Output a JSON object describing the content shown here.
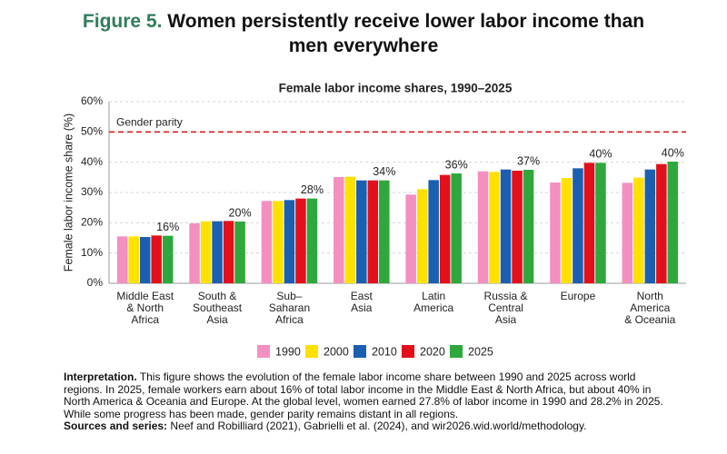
{
  "figure": {
    "label": "Figure 5.",
    "title": "Women persistently receive lower labor income than men everywhere"
  },
  "chart_data": {
    "type": "bar",
    "title": "Female labor income shares, 1990–2025",
    "y_label": "Female labor income share (%)",
    "categories": [
      "Middle East\n& North\nAfrica",
      "South &\nSoutheast\nAsia",
      "Sub–\nSaharan\nAfrica",
      "East\nAsia",
      "Latin\nAmerica",
      "Russia &\nCentral\nAsia",
      "Europe",
      "North\nAmerica\n& Oceania"
    ],
    "series": [
      {
        "name": "1990",
        "color": "#f48fc1",
        "values": [
          15.5,
          19.8,
          27.2,
          35.1,
          29.3,
          37.0,
          33.3,
          33.2
        ]
      },
      {
        "name": "2000",
        "color": "#ffe100",
        "values": [
          15.5,
          20.5,
          27.2,
          35.2,
          31.1,
          36.8,
          34.8,
          34.9
        ]
      },
      {
        "name": "2010",
        "color": "#1b5fb0",
        "values": [
          15.3,
          20.5,
          27.5,
          34.0,
          34.1,
          37.6,
          38.0,
          37.6
        ]
      },
      {
        "name": "2020",
        "color": "#e2101a",
        "values": [
          15.8,
          20.6,
          28.0,
          34.0,
          35.8,
          37.2,
          39.8,
          39.4
        ]
      },
      {
        "name": "2025",
        "color": "#2ea83c",
        "values": [
          15.7,
          20.4,
          28.0,
          34.0,
          36.3,
          37.5,
          39.8,
          40.2
        ],
        "value_labels": [
          "16%",
          "20%",
          "28%",
          "34%",
          "36%",
          "37%",
          "40%",
          "40%"
        ]
      }
    ],
    "ylim": [
      0,
      60
    ],
    "yticks": [
      {
        "value": 0,
        "label": "0%"
      },
      {
        "value": 10,
        "label": "10%"
      },
      {
        "value": 20,
        "label": "20%"
      },
      {
        "value": 30,
        "label": "30%"
      },
      {
        "value": 40,
        "label": "40%"
      },
      {
        "value": 50,
        "label": "50%"
      },
      {
        "value": 60,
        "label": "60%"
      }
    ],
    "grid": true,
    "reference_line": {
      "value": 50,
      "label": "Gender parity",
      "color": "#d81e1e"
    },
    "legend": "bottom"
  },
  "notes": {
    "interpretation_label": "Interpretation.",
    "interpretation": "This figure shows the evolution of the female labor income share between 1990 and 2025 across world regions. In 2025, female workers earn about 16% of total labor income in the Middle East & North Africa, but about 40% in North America & Oceania and Europe. At the global level, women earned 27.8% of labor income in 1990 and 28.2% in 2025. While some progress has been made, gender parity remains distant in all regions.",
    "sources_label": "Sources and series:",
    "sources": "Neef and Robilliard (2021), Gabrielli et al. (2024), and wir2026.wid.world/methodology."
  }
}
